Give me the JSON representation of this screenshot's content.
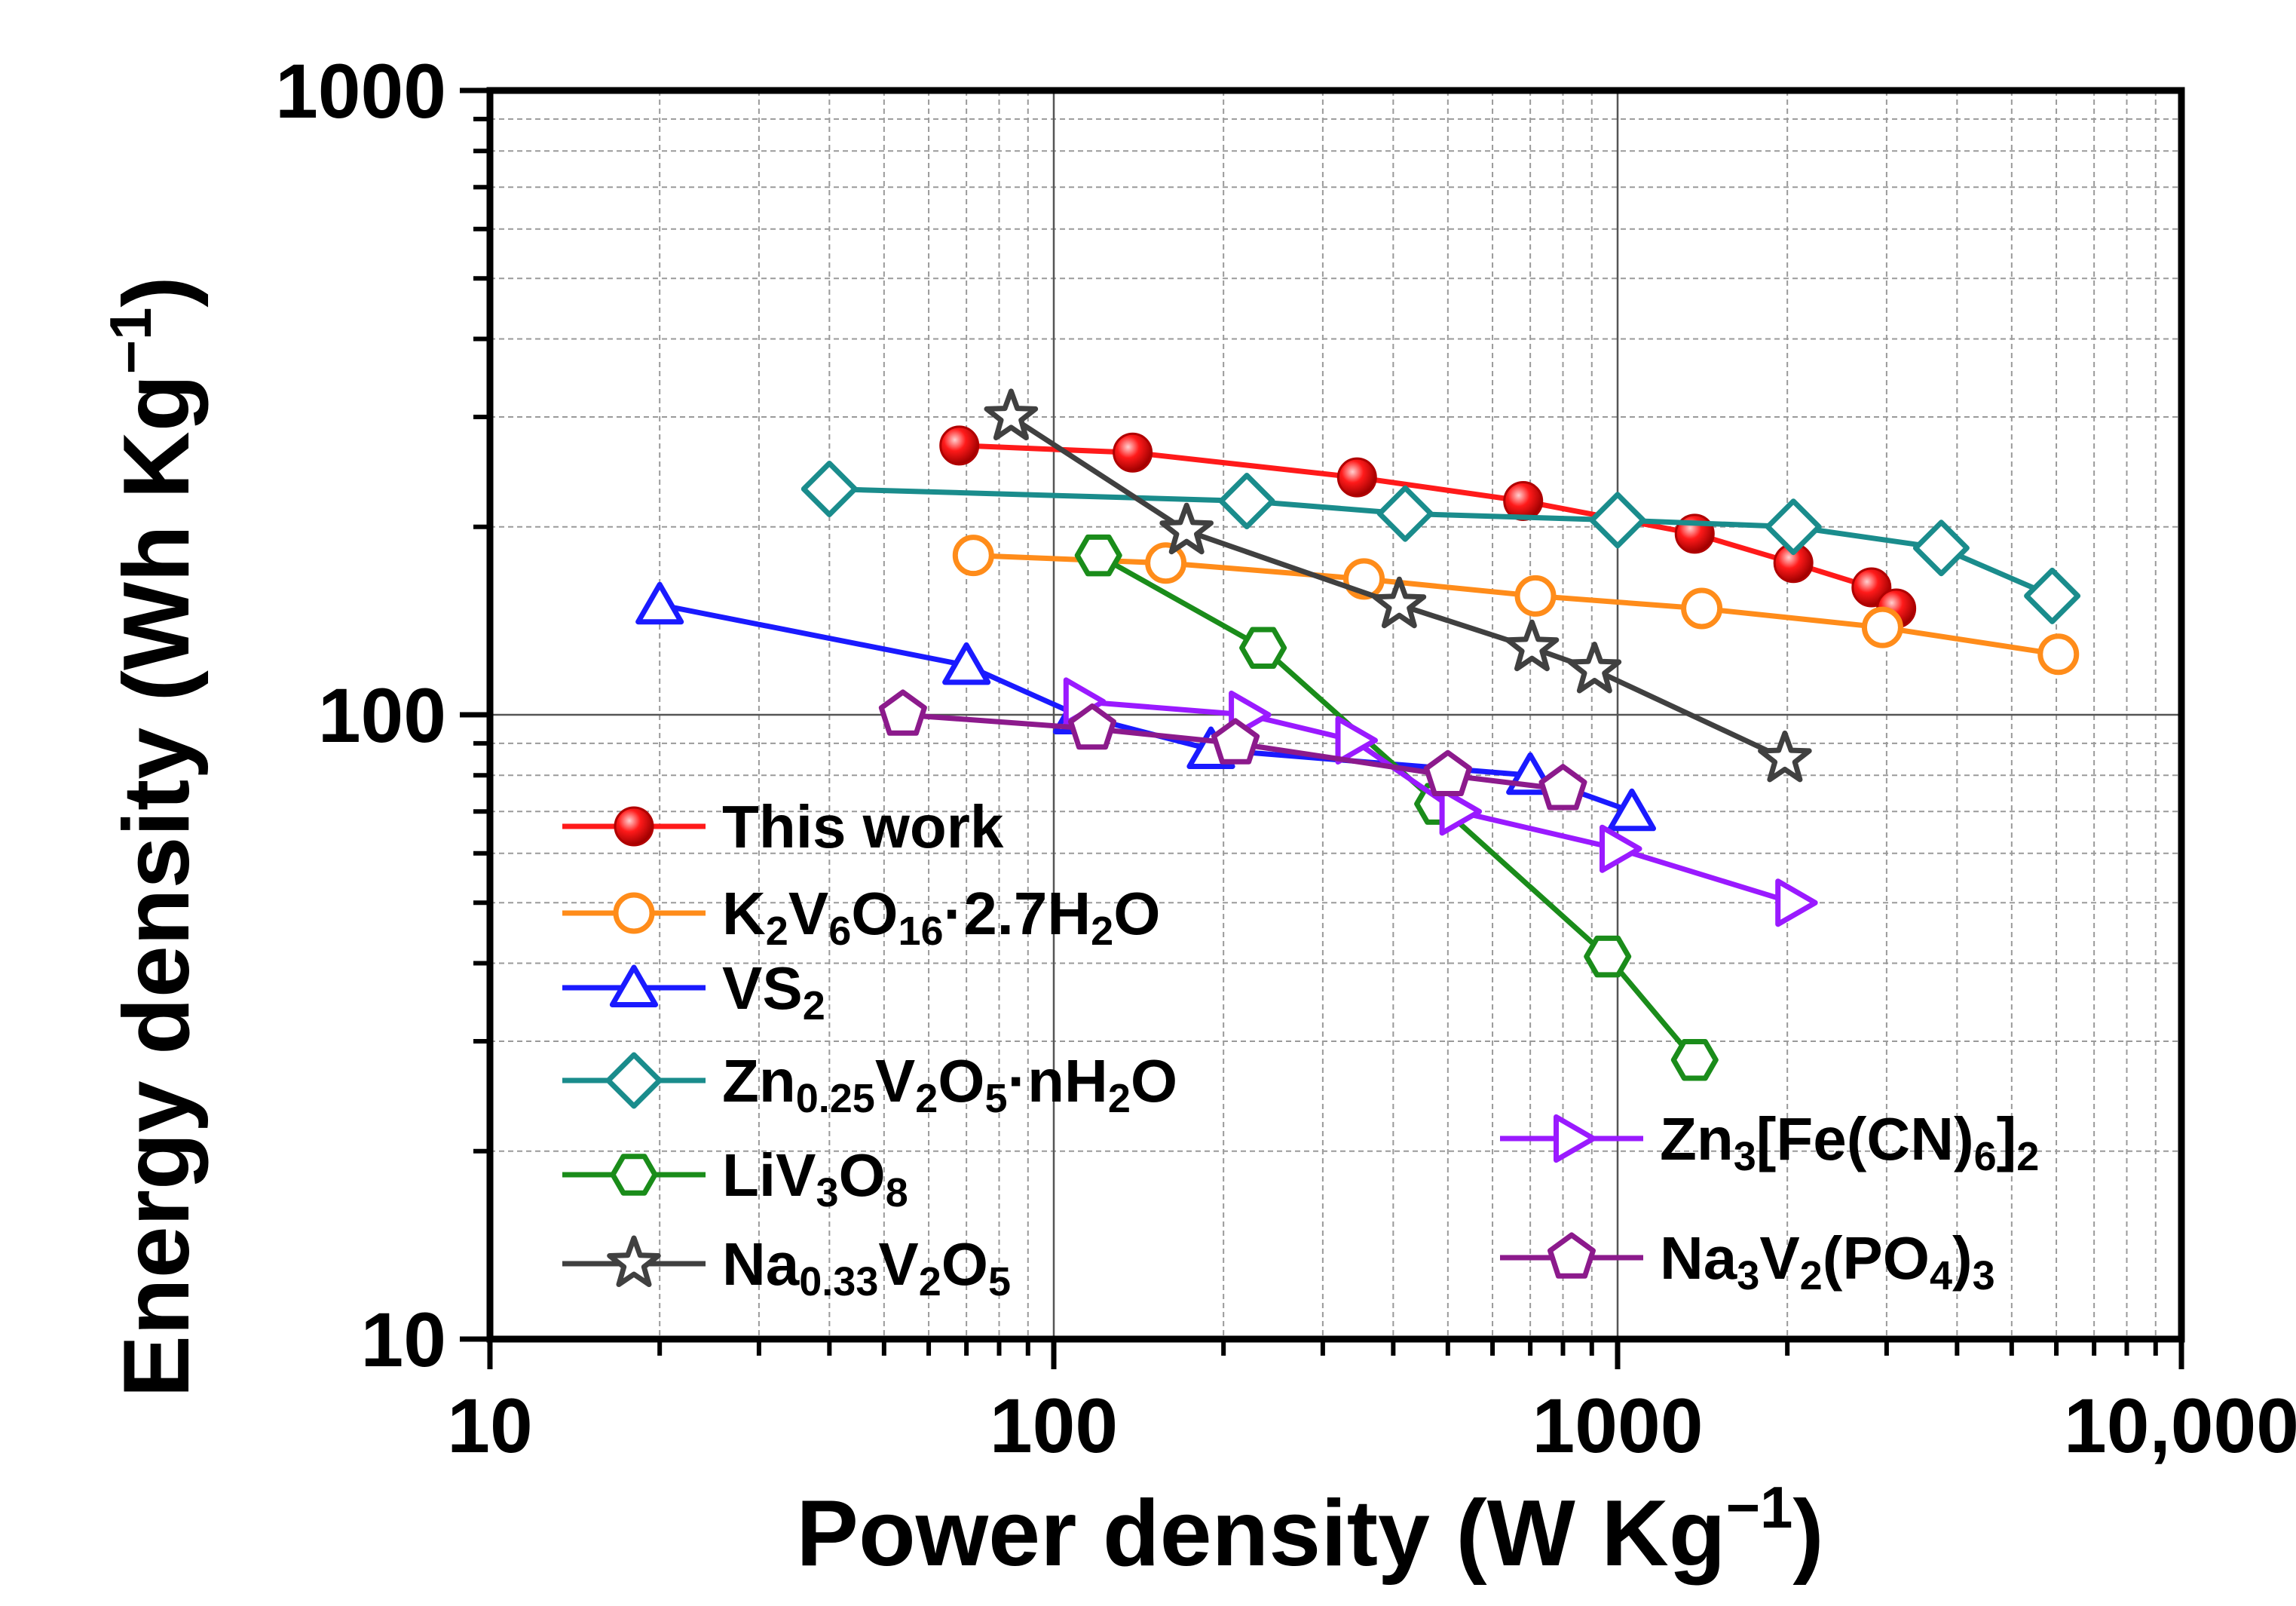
{
  "chart_data": {
    "type": "scatter",
    "title": "",
    "xlabel": "Power density (W Kg⁻¹)",
    "ylabel": "Energy density (Wh Kg⁻¹)",
    "xscale": "log",
    "yscale": "log",
    "xlim": [
      10,
      10000
    ],
    "ylim": [
      10,
      1000
    ],
    "xticks": [
      10,
      100,
      1000,
      10000
    ],
    "xtick_labels": [
      "10",
      "100",
      "1000",
      "10,000"
    ],
    "yticks": [
      10,
      100,
      1000
    ],
    "ytick_labels": [
      "10",
      "100",
      "1000"
    ],
    "grid": true,
    "legend_position": "lower-left and lower-right",
    "series": [
      {
        "name": "This work",
        "color": "#ff1a1a",
        "marker": "ball",
        "x": [
          68,
          138,
          345,
          680,
          1370,
          2050,
          2820,
          3120
        ],
        "y": [
          270,
          263,
          240,
          220,
          195,
          175,
          160,
          148
        ]
      },
      {
        "name": "K2V6O16·2.7H2O",
        "color": "#ff8c1a",
        "marker": "circle",
        "x": [
          72,
          158,
          355,
          715,
          1410,
          2950,
          6050
        ],
        "y": [
          180,
          175,
          165,
          155,
          148,
          138,
          125
        ]
      },
      {
        "name": "VS2",
        "color": "#1a1aff",
        "marker": "triangle",
        "x": [
          20,
          70,
          110,
          190,
          700,
          1060
        ],
        "y": [
          150,
          120,
          100,
          88,
          80,
          70
        ]
      },
      {
        "name": "Zn0.25V2O5·nH2O",
        "color": "#1a8c8c",
        "marker": "diamond",
        "x": [
          40,
          220,
          420,
          1000,
          2050,
          3750,
          5900
        ],
        "y": [
          230,
          220,
          210,
          205,
          200,
          185,
          155
        ]
      },
      {
        "name": "LiV3O8",
        "color": "#1a8c1a",
        "marker": "hexagon",
        "x": [
          120,
          235,
          480,
          960,
          1370
        ],
        "y": [
          180,
          128,
          72,
          41,
          28
        ]
      },
      {
        "name": "Na0.33V2O5",
        "color": "#404040",
        "marker": "star",
        "x": [
          84,
          172,
          410,
          705,
          910,
          1980
        ],
        "y": [
          300,
          197,
          150,
          128,
          118,
          85
        ]
      },
      {
        "name": "Zn3[Fe(CN)6]2",
        "color": "#9a1aff",
        "marker": "triangle-right",
        "x": [
          112,
          220,
          340,
          520,
          1000,
          2050
        ],
        "y": [
          105,
          100,
          91,
          70,
          61,
          50
        ]
      },
      {
        "name": "Na3V2(PO4)3",
        "color": "#8c1a8c",
        "marker": "pentagon",
        "x": [
          54,
          117,
          210,
          500,
          800
        ],
        "y": [
          100,
          95,
          90,
          80,
          76
        ]
      }
    ]
  },
  "axis_titles": {
    "x_main": "Power density (W Kg",
    "x_sup": "−1",
    "x_close": ")",
    "y_main": "Energy density (Wh Kg",
    "y_sup": "−1",
    "y_close": ")"
  },
  "legend": [
    {
      "series": 0,
      "parts": [
        [
          "This work",
          ""
        ]
      ]
    },
    {
      "series": 1,
      "parts": [
        [
          "K",
          ""
        ],
        [
          "2",
          "sub"
        ],
        [
          "V",
          ""
        ],
        [
          "6",
          "sub"
        ],
        [
          "O",
          ""
        ],
        [
          "16",
          "sub"
        ],
        [
          "·2.7H",
          ""
        ],
        [
          "2",
          "sub"
        ],
        [
          "O",
          ""
        ]
      ]
    },
    {
      "series": 2,
      "parts": [
        [
          "VS",
          ""
        ],
        [
          "2",
          "sub"
        ]
      ]
    },
    {
      "series": 3,
      "parts": [
        [
          "Zn",
          ""
        ],
        [
          "0.25",
          "sub"
        ],
        [
          "V",
          ""
        ],
        [
          "2",
          "sub"
        ],
        [
          "O",
          ""
        ],
        [
          "5",
          "sub"
        ],
        [
          "·nH",
          ""
        ],
        [
          "2",
          "sub"
        ],
        [
          "O",
          ""
        ]
      ]
    },
    {
      "series": 4,
      "parts": [
        [
          "LiV",
          ""
        ],
        [
          "3",
          "sub"
        ],
        [
          "O",
          ""
        ],
        [
          "8",
          "sub"
        ]
      ]
    },
    {
      "series": 5,
      "parts": [
        [
          "Na",
          ""
        ],
        [
          "0.33",
          "sub"
        ],
        [
          "V",
          ""
        ],
        [
          "2",
          "sub"
        ],
        [
          "O",
          ""
        ],
        [
          "5",
          "sub"
        ]
      ]
    },
    {
      "series": 6,
      "parts": [
        [
          "Zn",
          ""
        ],
        [
          "3",
          "sub"
        ],
        [
          "[Fe(CN)",
          ""
        ],
        [
          "6",
          "sub"
        ],
        [
          "]",
          ""
        ],
        [
          "2",
          "sub"
        ]
      ]
    },
    {
      "series": 7,
      "parts": [
        [
          "Na",
          ""
        ],
        [
          "3",
          "sub"
        ],
        [
          "V",
          ""
        ],
        [
          "2",
          "sub"
        ],
        [
          "(PO",
          ""
        ],
        [
          "4",
          "sub"
        ],
        [
          ")",
          ""
        ],
        [
          "3",
          "sub"
        ]
      ]
    }
  ]
}
